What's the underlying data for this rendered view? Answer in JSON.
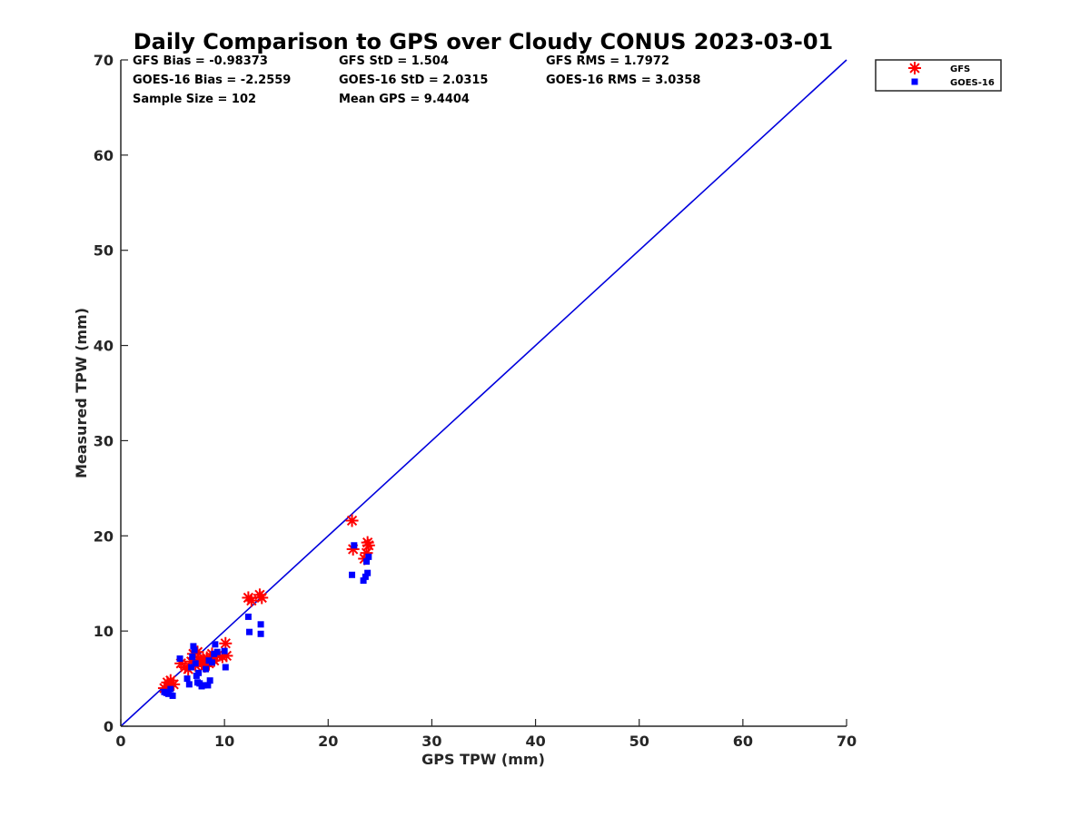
{
  "chart_data": {
    "type": "scatter",
    "title": "Daily Comparison to GPS over Cloudy CONUS 2023-03-01",
    "xlabel": "GPS TPW (mm)",
    "ylabel": "Measured TPW (mm)",
    "xlim": [
      0,
      70
    ],
    "ylim": [
      0,
      70
    ],
    "xticks": [
      "0",
      "10",
      "20",
      "30",
      "40",
      "50",
      "60",
      "70"
    ],
    "yticks": [
      "0",
      "10",
      "20",
      "30",
      "40",
      "50",
      "60",
      "70"
    ],
    "grid": false,
    "legend_position": "outside-top-right",
    "stats": [
      [
        "GFS Bias = -0.98373",
        "GFS StD = 1.504",
        "GFS RMS = 1.7972"
      ],
      [
        "GOES-16 Bias = -2.2559",
        "GOES-16 StD = 2.0315",
        "GOES-16 RMS = 3.0358"
      ],
      [
        "Sample Size = 102",
        "Mean GPS = 9.4404",
        ""
      ]
    ],
    "reference_line": {
      "name": "1:1 line",
      "x": [
        0,
        70
      ],
      "y": [
        0,
        70
      ],
      "color": "#0000dd"
    },
    "series": [
      {
        "name": "GFS",
        "marker": "asterisk",
        "color": "#ff0000",
        "points": [
          [
            4.2,
            4.0
          ],
          [
            4.5,
            4.6
          ],
          [
            4.8,
            4.8
          ],
          [
            5.1,
            4.4
          ],
          [
            4.6,
            4.2
          ],
          [
            5.8,
            6.6
          ],
          [
            6.5,
            6.0
          ],
          [
            6.8,
            6.8
          ],
          [
            7.0,
            7.6
          ],
          [
            7.2,
            6.4
          ],
          [
            7.5,
            7.0
          ],
          [
            7.8,
            6.6
          ],
          [
            8.0,
            6.9
          ],
          [
            8.3,
            7.2
          ],
          [
            8.5,
            6.6
          ],
          [
            8.7,
            7.0
          ],
          [
            9.0,
            6.9
          ],
          [
            9.3,
            7.4
          ],
          [
            9.8,
            7.3
          ],
          [
            10.2,
            7.4
          ],
          [
            10.1,
            8.7
          ],
          [
            12.3,
            13.5
          ],
          [
            12.6,
            13.2
          ],
          [
            13.4,
            13.8
          ],
          [
            13.6,
            13.5
          ],
          [
            22.3,
            21.6
          ],
          [
            22.4,
            18.6
          ],
          [
            23.5,
            17.6
          ],
          [
            23.7,
            18.2
          ],
          [
            23.8,
            19.3
          ],
          [
            23.9,
            19.0
          ],
          [
            6.2,
            6.2
          ],
          [
            7.4,
            7.8
          ],
          [
            8.1,
            6.3
          ],
          [
            8.8,
            7.6
          ]
        ]
      },
      {
        "name": "GOES-16",
        "marker": "square",
        "color": "#0000ff",
        "points": [
          [
            4.2,
            3.6
          ],
          [
            4.4,
            3.5
          ],
          [
            4.6,
            3.4
          ],
          [
            4.8,
            3.9
          ],
          [
            5.0,
            3.2
          ],
          [
            5.7,
            7.1
          ],
          [
            6.4,
            5.0
          ],
          [
            6.6,
            4.4
          ],
          [
            6.8,
            6.2
          ],
          [
            7.0,
            8.4
          ],
          [
            7.1,
            8.0
          ],
          [
            7.2,
            6.6
          ],
          [
            7.3,
            5.3
          ],
          [
            7.4,
            4.6
          ],
          [
            7.6,
            4.5
          ],
          [
            7.8,
            4.2
          ],
          [
            8.0,
            4.3
          ],
          [
            8.2,
            6.0
          ],
          [
            8.4,
            4.3
          ],
          [
            8.6,
            4.8
          ],
          [
            8.8,
            6.7
          ],
          [
            9.0,
            7.6
          ],
          [
            9.1,
            8.6
          ],
          [
            9.3,
            7.8
          ],
          [
            10.0,
            7.9
          ],
          [
            10.1,
            6.2
          ],
          [
            12.3,
            11.5
          ],
          [
            12.4,
            9.9
          ],
          [
            13.5,
            10.7
          ],
          [
            13.5,
            9.7
          ],
          [
            22.3,
            15.9
          ],
          [
            22.5,
            19.0
          ],
          [
            23.4,
            15.3
          ],
          [
            23.6,
            15.7
          ],
          [
            23.8,
            16.1
          ],
          [
            23.7,
            17.3
          ],
          [
            23.9,
            17.8
          ],
          [
            6.9,
            7.3
          ],
          [
            7.5,
            5.6
          ],
          [
            8.5,
            6.9
          ]
        ]
      }
    ]
  }
}
